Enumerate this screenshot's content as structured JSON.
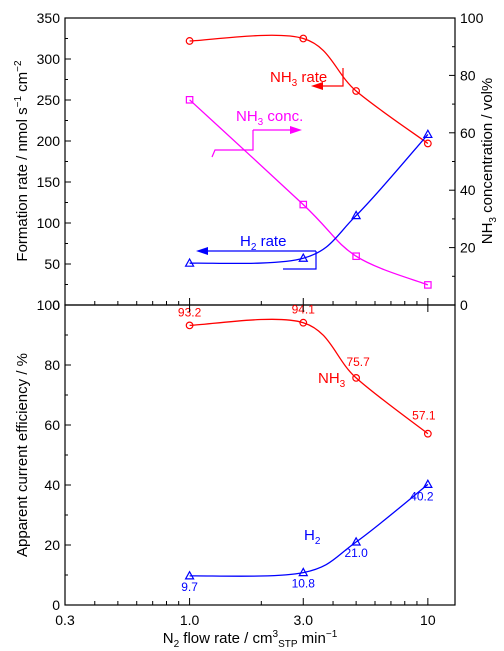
{
  "chart_data": [
    {
      "type": "line",
      "x_scale": "log",
      "x": [
        1.0,
        3.0,
        5.0,
        10.0
      ],
      "xlim": [
        0.3,
        13
      ],
      "ylabel": "Formation rate / nmol s⁻¹ cm⁻²",
      "ylim": [
        0,
        350
      ],
      "y_ticks": [
        0,
        50,
        100,
        150,
        200,
        250,
        300,
        350
      ],
      "y2label": "NH₃ concentration / vol%",
      "y2lim": [
        0,
        100
      ],
      "y2_ticks": [
        0,
        20,
        40,
        60,
        80,
        100
      ],
      "series": [
        {
          "name": "NH₃ rate",
          "axis": "left",
          "color": "#ff0000",
          "marker": "circle",
          "values": [
            322,
            325,
            261,
            197
          ]
        },
        {
          "name": "NH₃ conc.",
          "axis": "right",
          "color": "#ff00ff",
          "marker": "square",
          "values": [
            71.5,
            35,
            17,
            7
          ]
        },
        {
          "name": "H₂ rate",
          "axis": "left",
          "color": "#0000ff",
          "marker": "triangle",
          "values": [
            51,
            57,
            109,
            208
          ]
        }
      ]
    },
    {
      "type": "line",
      "x_scale": "log",
      "x": [
        1.0,
        3.0,
        5.0,
        10.0
      ],
      "xlim": [
        0.3,
        13
      ],
      "x_ticks": [
        0.3,
        1.0,
        3.0,
        10
      ],
      "x_tick_labels": [
        "0.3",
        "1.0",
        "3.0",
        "10"
      ],
      "xlabel": "N₂ flow rate / cm³STP min⁻¹",
      "ylabel": "Apparent current efficiency / %",
      "ylim": [
        0,
        100
      ],
      "y_ticks": [
        0,
        20,
        40,
        60,
        80,
        100
      ],
      "series": [
        {
          "name": "NH₃",
          "color": "#ff0000",
          "marker": "circle",
          "values": [
            93.2,
            94.1,
            75.7,
            57.1
          ],
          "labels": [
            "93.2",
            "94.1",
            "75.7",
            "57.1"
          ]
        },
        {
          "name": "H₂",
          "color": "#0000ff",
          "marker": "triangle",
          "values": [
            9.7,
            10.8,
            21.0,
            40.2
          ],
          "labels": [
            "9.7",
            "10.8",
            "21.0",
            "40.2"
          ]
        }
      ]
    }
  ]
}
